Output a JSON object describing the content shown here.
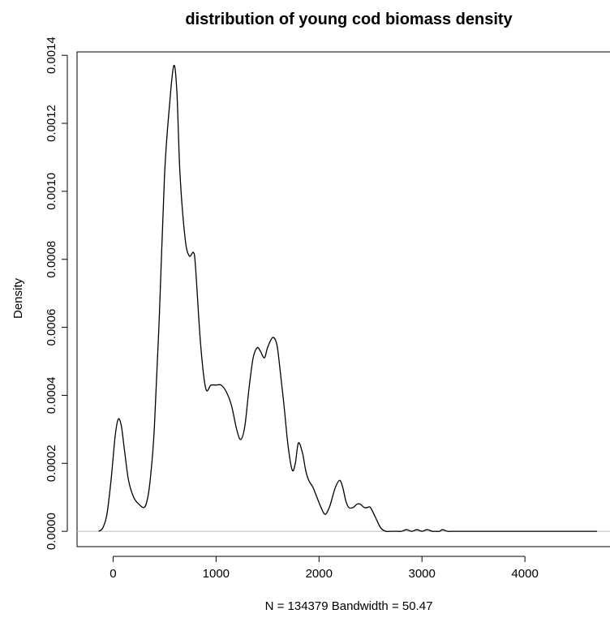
{
  "chart_data": {
    "type": "line",
    "title": "distribution of young cod biomass density",
    "xlabel": "N = 134379   Bandwidth = 50.47",
    "ylabel": "Density",
    "xlim": [
      -350,
      4850
    ],
    "ylim": [
      -4.5e-05,
      0.00141
    ],
    "xticks": [
      {
        "value": 0,
        "label": "0"
      },
      {
        "value": 1000,
        "label": "1000"
      },
      {
        "value": 2000,
        "label": "2000"
      },
      {
        "value": 3000,
        "label": "3000"
      },
      {
        "value": 4000,
        "label": "4000"
      }
    ],
    "yticks": [
      {
        "value": 0,
        "label": "0.0000"
      },
      {
        "value": 0.0002,
        "label": "0.0002"
      },
      {
        "value": 0.0004,
        "label": "0.0004"
      },
      {
        "value": 0.0006,
        "label": "0.0006"
      },
      {
        "value": 0.0008,
        "label": "0.0008"
      },
      {
        "value": 0.001,
        "label": "0.0010"
      },
      {
        "value": 0.0012,
        "label": "0.0012"
      },
      {
        "value": 0.0014,
        "label": "0.0014"
      }
    ],
    "baseline": 0,
    "colors": {
      "line": "#000000",
      "baseline": "#bbbbbb",
      "axis": "#000000"
    },
    "series": [
      {
        "x": [
          -140,
          -100,
          -60,
          -20,
          20,
          50,
          80,
          110,
          150,
          200,
          250,
          300,
          330,
          360,
          400,
          450,
          500,
          550,
          590,
          620,
          650,
          700,
          740,
          780,
          800,
          850,
          900,
          950,
          1000,
          1050,
          1100,
          1150,
          1200,
          1240,
          1280,
          1320,
          1360,
          1400,
          1430,
          1470,
          1500,
          1550,
          1590,
          1620,
          1660,
          1700,
          1740,
          1770,
          1800,
          1840,
          1870,
          1900,
          1940,
          1980,
          2020,
          2060,
          2100,
          2130,
          2160,
          2200,
          2230,
          2260,
          2290,
          2330,
          2370,
          2400,
          2440,
          2470,
          2500,
          2550,
          2600,
          2650,
          2700,
          2730,
          2760,
          2800,
          2850,
          2900,
          2950,
          3000,
          3050,
          3100,
          3130,
          3170,
          3200,
          3250,
          3300,
          3500,
          3750,
          3790,
          3850,
          4000,
          4020,
          4080,
          4100,
          4200,
          4600,
          4630,
          4660,
          4700
        ],
        "y": [
          0.0,
          1e-05,
          5e-05,
          0.00015,
          0.00028,
          0.00033,
          0.00031,
          0.00024,
          0.00015,
          0.0001,
          8e-05,
          7e-05,
          9e-05,
          0.00015,
          0.0003,
          0.00064,
          0.00105,
          0.00126,
          0.00137,
          0.00129,
          0.00105,
          0.00086,
          0.00081,
          0.00082,
          0.00078,
          0.00055,
          0.00042,
          0.00043,
          0.00043,
          0.00043,
          0.00041,
          0.00037,
          0.0003,
          0.00027,
          0.00031,
          0.00042,
          0.00051,
          0.00054,
          0.00053,
          0.00051,
          0.00054,
          0.00057,
          0.00055,
          0.00048,
          0.00037,
          0.00025,
          0.00018,
          0.0002,
          0.00026,
          0.00023,
          0.00018,
          0.00015,
          0.00013,
          0.0001,
          7e-05,
          5e-05,
          7e-05,
          0.0001,
          0.00013,
          0.00015,
          0.00013,
          9e-05,
          7e-05,
          7e-05,
          8e-05,
          8e-05,
          7e-05,
          7e-05,
          7e-05,
          4e-05,
          1e-05,
          0.0,
          0.0,
          0.0,
          0.0,
          0.0,
          5e-06,
          0.0,
          5e-06,
          0.0,
          5e-06,
          0.0,
          0.0,
          0.0,
          5e-06,
          0.0,
          0.0,
          0.0,
          0.0,
          0.0,
          0.0,
          0.0,
          0.0,
          0.0,
          0.0,
          0.0,
          0.0,
          0.0,
          0.0,
          0.0
        ]
      }
    ]
  }
}
